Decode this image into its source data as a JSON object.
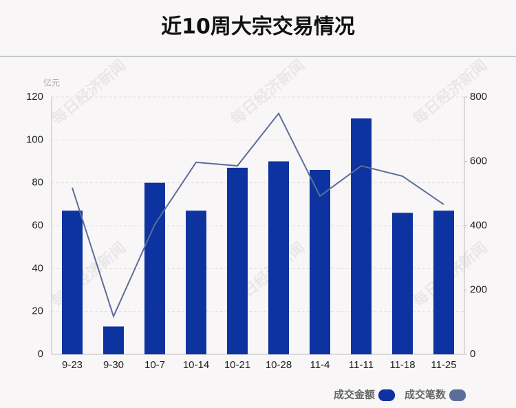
{
  "chart_data": {
    "type": "bar",
    "title": "近10周大宗交易情况",
    "unit_label": "亿元",
    "watermark": "每日经济新闻",
    "categories": [
      "9-23",
      "9-30",
      "10-7",
      "10-14",
      "10-21",
      "10-28",
      "11-4",
      "11-11",
      "11-18",
      "11-25"
    ],
    "series": [
      {
        "name": "成交金额",
        "type": "bar",
        "color": "#0d33a0",
        "values": [
          67,
          13,
          80,
          67,
          87,
          90,
          86,
          110,
          66,
          67
        ]
      },
      {
        "name": "成交笔数",
        "type": "line",
        "axis": "y2",
        "color": "#5b6e99",
        "values": [
          518,
          118,
          404,
          597,
          586,
          749,
          492,
          586,
          554,
          466
        ]
      }
    ],
    "ylim": [
      0,
      120
    ],
    "yticks": [
      0,
      20,
      40,
      60,
      80,
      100,
      120
    ],
    "y2lim": [
      0,
      800
    ],
    "y2ticks": [
      0,
      200,
      400,
      600,
      800
    ],
    "grid": true,
    "legend": "bottom-right"
  }
}
